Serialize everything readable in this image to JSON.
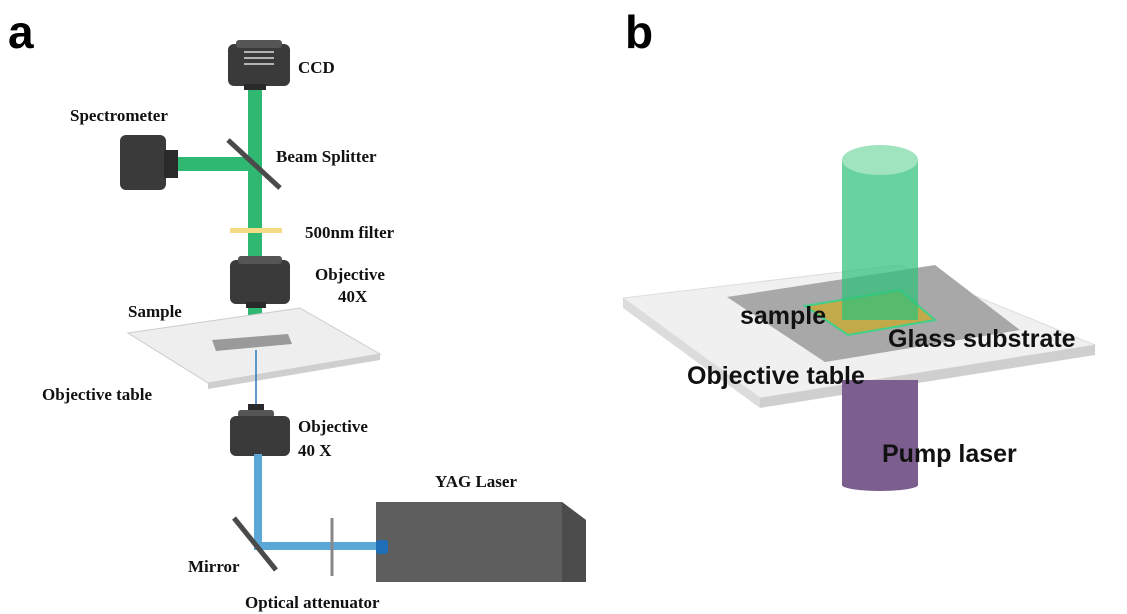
{
  "panel_a": {
    "label": "a",
    "ccd": "CCD",
    "spectrometer": "Spectrometer",
    "beam_splitter": "Beam Splitter",
    "filter": "500nm filter",
    "objective_top": [
      "Objective",
      "40X"
    ],
    "sample": "Sample",
    "objective_table": "Objective table",
    "objective_bottom": [
      "Objective",
      "40 X"
    ],
    "yag_laser": "YAG Laser",
    "mirror": "Mirror",
    "optical_attenuator": "Optical attenuator"
  },
  "panel_b": {
    "label": "b",
    "sample": "sample",
    "glass_substrate": "Glass substrate",
    "objective_table": "Objective table",
    "pump_laser": "Pump laser"
  }
}
